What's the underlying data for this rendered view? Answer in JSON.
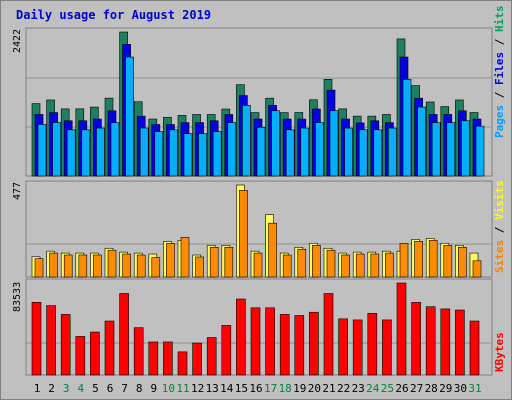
{
  "chart_data": {
    "type": "bar",
    "title": "Daily usage for August 2019",
    "categories": [
      "1",
      "2",
      "3",
      "4",
      "5",
      "6",
      "7",
      "8",
      "9",
      "10",
      "11",
      "12",
      "13",
      "14",
      "15",
      "16",
      "17",
      "18",
      "19",
      "20",
      "21",
      "22",
      "23",
      "24",
      "25",
      "26",
      "27",
      "28",
      "29",
      "30",
      "31"
    ],
    "weekend_days": [
      "3",
      "4",
      "10",
      "11",
      "17",
      "18",
      "24",
      "25",
      "31"
    ],
    "panels": [
      {
        "id": "hits",
        "ylabel_parts": [
          {
            "text": "Pages",
            "color": "#00a0ff"
          },
          {
            "text": " / ",
            "color": "#000000"
          },
          {
            "text": "Files",
            "color": "#0000e0"
          },
          {
            "text": " / ",
            "color": "#000000"
          },
          {
            "text": "Hits",
            "color": "#00a060"
          }
        ],
        "ymax_label": "2422",
        "ymax": 2422,
        "series": [
          {
            "name": "Hits",
            "color": "#1e8060",
            "values": [
              1218,
              1279,
              1129,
              1129,
              1159,
              1310,
              2422,
              1249,
              958,
              988,
              1019,
              1035,
              1035,
              1126,
              1536,
              1067,
              1309,
              1067,
              1068,
              1282,
              1626,
              1129,
              1007,
              1007,
              1035,
              2306,
              1521,
              1245,
              1168,
              1279,
              1068
            ]
          },
          {
            "name": "Files",
            "color": "#0000e0",
            "values": [
              1035,
              1067,
              929,
              929,
              958,
              1097,
              2214,
              1007,
              866,
              866,
              898,
              898,
              929,
              1035,
              1353,
              958,
              1188,
              958,
              958,
              1127,
              1444,
              958,
              893,
              929,
              898,
              2001,
              1309,
              1035,
              1035,
              1097,
              958
            ]
          },
          {
            "name": "Pages",
            "color": "#00b0ff",
            "values": [
              867,
              898,
              777,
              777,
              806,
              898,
              2001,
              806,
              746,
              777,
              712,
              712,
              746,
              898,
              1188,
              819,
              1097,
              777,
              806,
              898,
              1097,
              806,
              777,
              777,
              806,
              1626,
              1159,
              898,
              898,
              929,
              838
            ]
          }
        ]
      },
      {
        "id": "visits",
        "ylabel_parts": [
          {
            "text": "Sites",
            "color": "#ff8000"
          },
          {
            "text": " / ",
            "color": "#000000"
          },
          {
            "text": "Visits",
            "color": "#ffff00"
          }
        ],
        "ymax_label": "477",
        "ymax": 477,
        "series": [
          {
            "name": "Visits",
            "color": "#ffff60",
            "values": [
              105,
              134,
              124,
              124,
              124,
              149,
              129,
              124,
              119,
              184,
              190,
              114,
              164,
              164,
              477,
              134,
              324,
              124,
              154,
              175,
              149,
              124,
              129,
              129,
              134,
              134,
              195,
              200,
              175,
              164,
              124
            ]
          },
          {
            "name": "Sites",
            "color": "#ff8c00",
            "values": [
              95,
              124,
              114,
              114,
              114,
              139,
              119,
              114,
              100,
              174,
              205,
              104,
              154,
              154,
              449,
              124,
              279,
              114,
              144,
              164,
              139,
              114,
              119,
              119,
              124,
              174,
              185,
              190,
              164,
              154,
              84
            ]
          }
        ]
      },
      {
        "id": "kbytes",
        "ylabel_parts": [
          {
            "text": "KBytes",
            "color": "#ff0000"
          }
        ],
        "ymax_label": "83533",
        "ymax": 83533,
        "series": [
          {
            "name": "KBytes",
            "color": "#ff0000",
            "values": [
              66000,
              63000,
              55000,
              35000,
              39000,
              49000,
              74000,
              43000,
              30000,
              30000,
              21000,
              29000,
              34000,
              45000,
              69000,
              61000,
              61000,
              55000,
              54000,
              57000,
              74000,
              51000,
              50000,
              56000,
              50000,
              83533,
              66000,
              62000,
              60000,
              59000,
              49000
            ]
          }
        ]
      }
    ]
  }
}
